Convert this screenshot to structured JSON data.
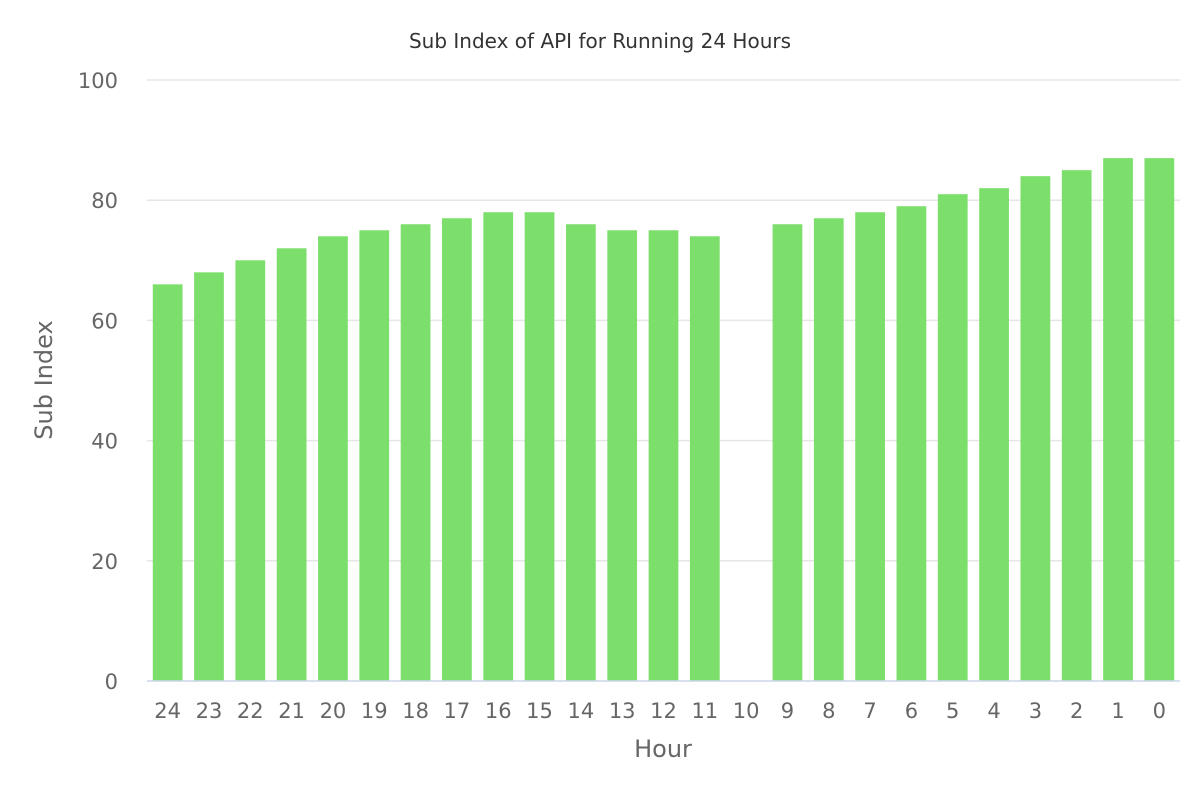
{
  "chart_data": {
    "type": "bar",
    "title": "Sub Index of API for Running 24 Hours",
    "xlabel": "Hour",
    "ylabel": "Sub Index",
    "categories": [
      "24",
      "23",
      "22",
      "21",
      "20",
      "19",
      "18",
      "17",
      "16",
      "15",
      "14",
      "13",
      "12",
      "11",
      "10",
      "9",
      "8",
      "7",
      "6",
      "5",
      "4",
      "3",
      "2",
      "1",
      "0"
    ],
    "values": [
      66,
      68,
      70,
      72,
      74,
      75,
      76,
      77,
      78,
      78,
      76,
      75,
      75,
      74,
      null,
      76,
      77,
      78,
      79,
      81,
      82,
      84,
      85,
      87,
      87
    ],
    "ylim": [
      0,
      100
    ],
    "yticks": [
      0,
      20,
      40,
      60,
      80,
      100
    ],
    "grid": true,
    "legend": "none",
    "colors": {
      "bar": "#7cdf6b",
      "grid": "#e6e6e6",
      "baseline": "#ccd6eb",
      "text": "#666666",
      "title": "#333333"
    }
  }
}
